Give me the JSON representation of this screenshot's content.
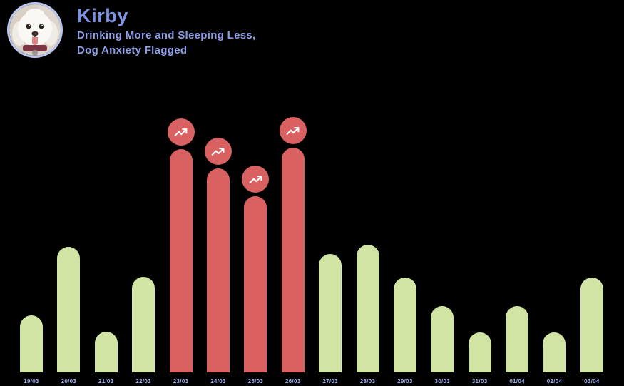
{
  "header": {
    "title": "Kirby",
    "subtitle_line1": "Drinking More and Sleeping Less,",
    "subtitle_line2": "Dog Anxiety Flagged",
    "avatar": "white-fluffy-dog-photo"
  },
  "colors": {
    "background": "#000000",
    "bar_normal": "#d2e4a3",
    "bar_alert": "#d96162",
    "title_text": "#7e92e2",
    "subtitle_text": "#8d9fe6",
    "axis_label_text": "#a2b2f2",
    "avatar_border": "#b9c6f0",
    "badge_icon": "#ffffff"
  },
  "chart_data": {
    "type": "bar",
    "title": "",
    "xlabel": "",
    "ylabel": "",
    "categories": [
      "19/03",
      "20/03",
      "21/03",
      "22/03",
      "23/03",
      "24/03",
      "25/03",
      "26/03",
      "27/03",
      "28/03",
      "29/03",
      "30/03",
      "31/03",
      "01/04",
      "02/04",
      "03/04"
    ],
    "values": [
      80,
      176,
      57,
      134,
      313,
      286,
      247,
      315,
      166,
      179,
      133,
      93,
      56,
      93,
      56,
      133
    ],
    "value_scale": "relative bar heights in pixels (chart shows no y-axis or gridlines)",
    "highlighted": [
      false,
      false,
      false,
      false,
      true,
      true,
      true,
      true,
      false,
      false,
      false,
      false,
      false,
      false,
      false,
      false
    ],
    "highlight_icon": "trending-up-icon",
    "legend_position": "none",
    "grid": false,
    "ylim": [
      0,
      362
    ]
  }
}
